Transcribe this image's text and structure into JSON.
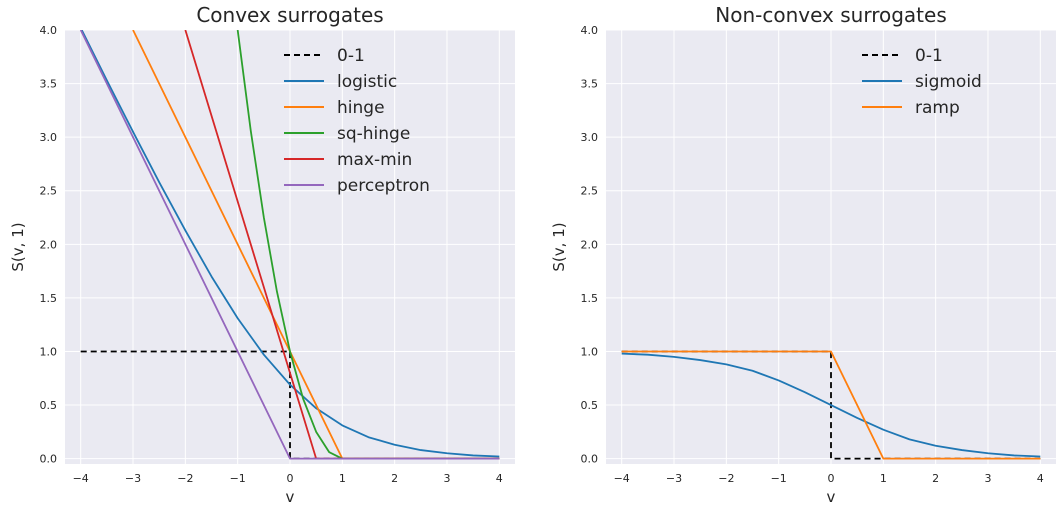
{
  "chart_data": [
    {
      "type": "line",
      "title": "Convex surrogates",
      "xlabel": "v",
      "ylabel": "S(v, 1)",
      "xlim": [
        -4.3,
        4.3
      ],
      "ylim": [
        -0.05,
        4.0
      ],
      "xticks": [
        -4,
        -3,
        -2,
        -1,
        0,
        1,
        2,
        3,
        4
      ],
      "xtick_labels": [
        "−4",
        "−3",
        "−2",
        "−1",
        "0",
        "1",
        "2",
        "3",
        "4"
      ],
      "yticks": [
        0,
        0.5,
        1,
        1.5,
        2,
        2.5,
        3,
        3.5,
        4
      ],
      "ytick_labels": [
        "0.0",
        "0.5",
        "1.0",
        "1.5",
        "2.0",
        "2.5",
        "3.0",
        "3.5",
        "4.0"
      ],
      "grid": true,
      "legend_position": "top-right",
      "series": [
        {
          "name": "0-1",
          "color": "#000000",
          "style": "dashed",
          "x": [
            -4,
            0,
            0,
            4
          ],
          "y": [
            1,
            1,
            0,
            0
          ]
        },
        {
          "name": "logistic",
          "color": "#1f77b4",
          "style": "solid",
          "x": [
            -4,
            -3.5,
            -3,
            -2.5,
            -2,
            -1.5,
            -1,
            -0.5,
            0,
            0.5,
            1,
            1.5,
            2,
            2.5,
            3,
            3.5,
            4
          ],
          "y": [
            4.02,
            3.53,
            3.05,
            2.58,
            2.13,
            1.7,
            1.31,
            0.97,
            0.69,
            0.47,
            0.31,
            0.2,
            0.13,
            0.08,
            0.05,
            0.03,
            0.02
          ]
        },
        {
          "name": "hinge",
          "color": "#ff7f0e",
          "style": "solid",
          "x": [
            -3,
            1,
            4
          ],
          "y": [
            4,
            0,
            0
          ]
        },
        {
          "name": "sq-hinge",
          "color": "#2ca02c",
          "style": "solid",
          "x": [
            -1,
            -0.75,
            -0.5,
            -0.25,
            0,
            0.25,
            0.5,
            0.75,
            1,
            4
          ],
          "y": [
            4,
            3.06,
            2.25,
            1.56,
            1,
            0.56,
            0.25,
            0.06,
            0,
            0
          ]
        },
        {
          "name": "max-min",
          "color": "#d62728",
          "style": "solid",
          "x": [
            -2,
            0.5,
            4
          ],
          "y": [
            4,
            0,
            0
          ]
        },
        {
          "name": "perceptron",
          "color": "#9467bd",
          "style": "solid",
          "x": [
            -4,
            0,
            4
          ],
          "y": [
            4,
            0,
            0
          ]
        }
      ]
    },
    {
      "type": "line",
      "title": "Non-convex surrogates",
      "xlabel": "v",
      "ylabel": "S(v, 1)",
      "xlim": [
        -4.3,
        4.3
      ],
      "ylim": [
        -0.05,
        4.0
      ],
      "xticks": [
        -4,
        -3,
        -2,
        -1,
        0,
        1,
        2,
        3,
        4
      ],
      "xtick_labels": [
        "−4",
        "−3",
        "−2",
        "−1",
        "0",
        "1",
        "2",
        "3",
        "4"
      ],
      "yticks": [
        0,
        0.5,
        1,
        1.5,
        2,
        2.5,
        3,
        3.5,
        4
      ],
      "ytick_labels": [
        "0.0",
        "0.5",
        "1.0",
        "1.5",
        "2.0",
        "2.5",
        "3.0",
        "3.5",
        "4.0"
      ],
      "grid": true,
      "legend_position": "top-right",
      "series": [
        {
          "name": "0-1",
          "color": "#000000",
          "style": "dashed",
          "x": [
            -4,
            0,
            0,
            4
          ],
          "y": [
            1,
            1,
            0,
            0
          ]
        },
        {
          "name": "sigmoid",
          "color": "#1f77b4",
          "style": "solid",
          "x": [
            -4,
            -3.5,
            -3,
            -2.5,
            -2,
            -1.5,
            -1,
            -0.5,
            0,
            0.5,
            1,
            1.5,
            2,
            2.5,
            3,
            3.5,
            4
          ],
          "y": [
            0.98,
            0.97,
            0.95,
            0.92,
            0.88,
            0.82,
            0.73,
            0.62,
            0.5,
            0.38,
            0.27,
            0.18,
            0.12,
            0.08,
            0.05,
            0.03,
            0.02
          ]
        },
        {
          "name": "ramp",
          "color": "#ff7f0e",
          "style": "solid",
          "x": [
            -4,
            0,
            1,
            4
          ],
          "y": [
            1,
            1,
            0,
            0
          ]
        }
      ]
    }
  ]
}
